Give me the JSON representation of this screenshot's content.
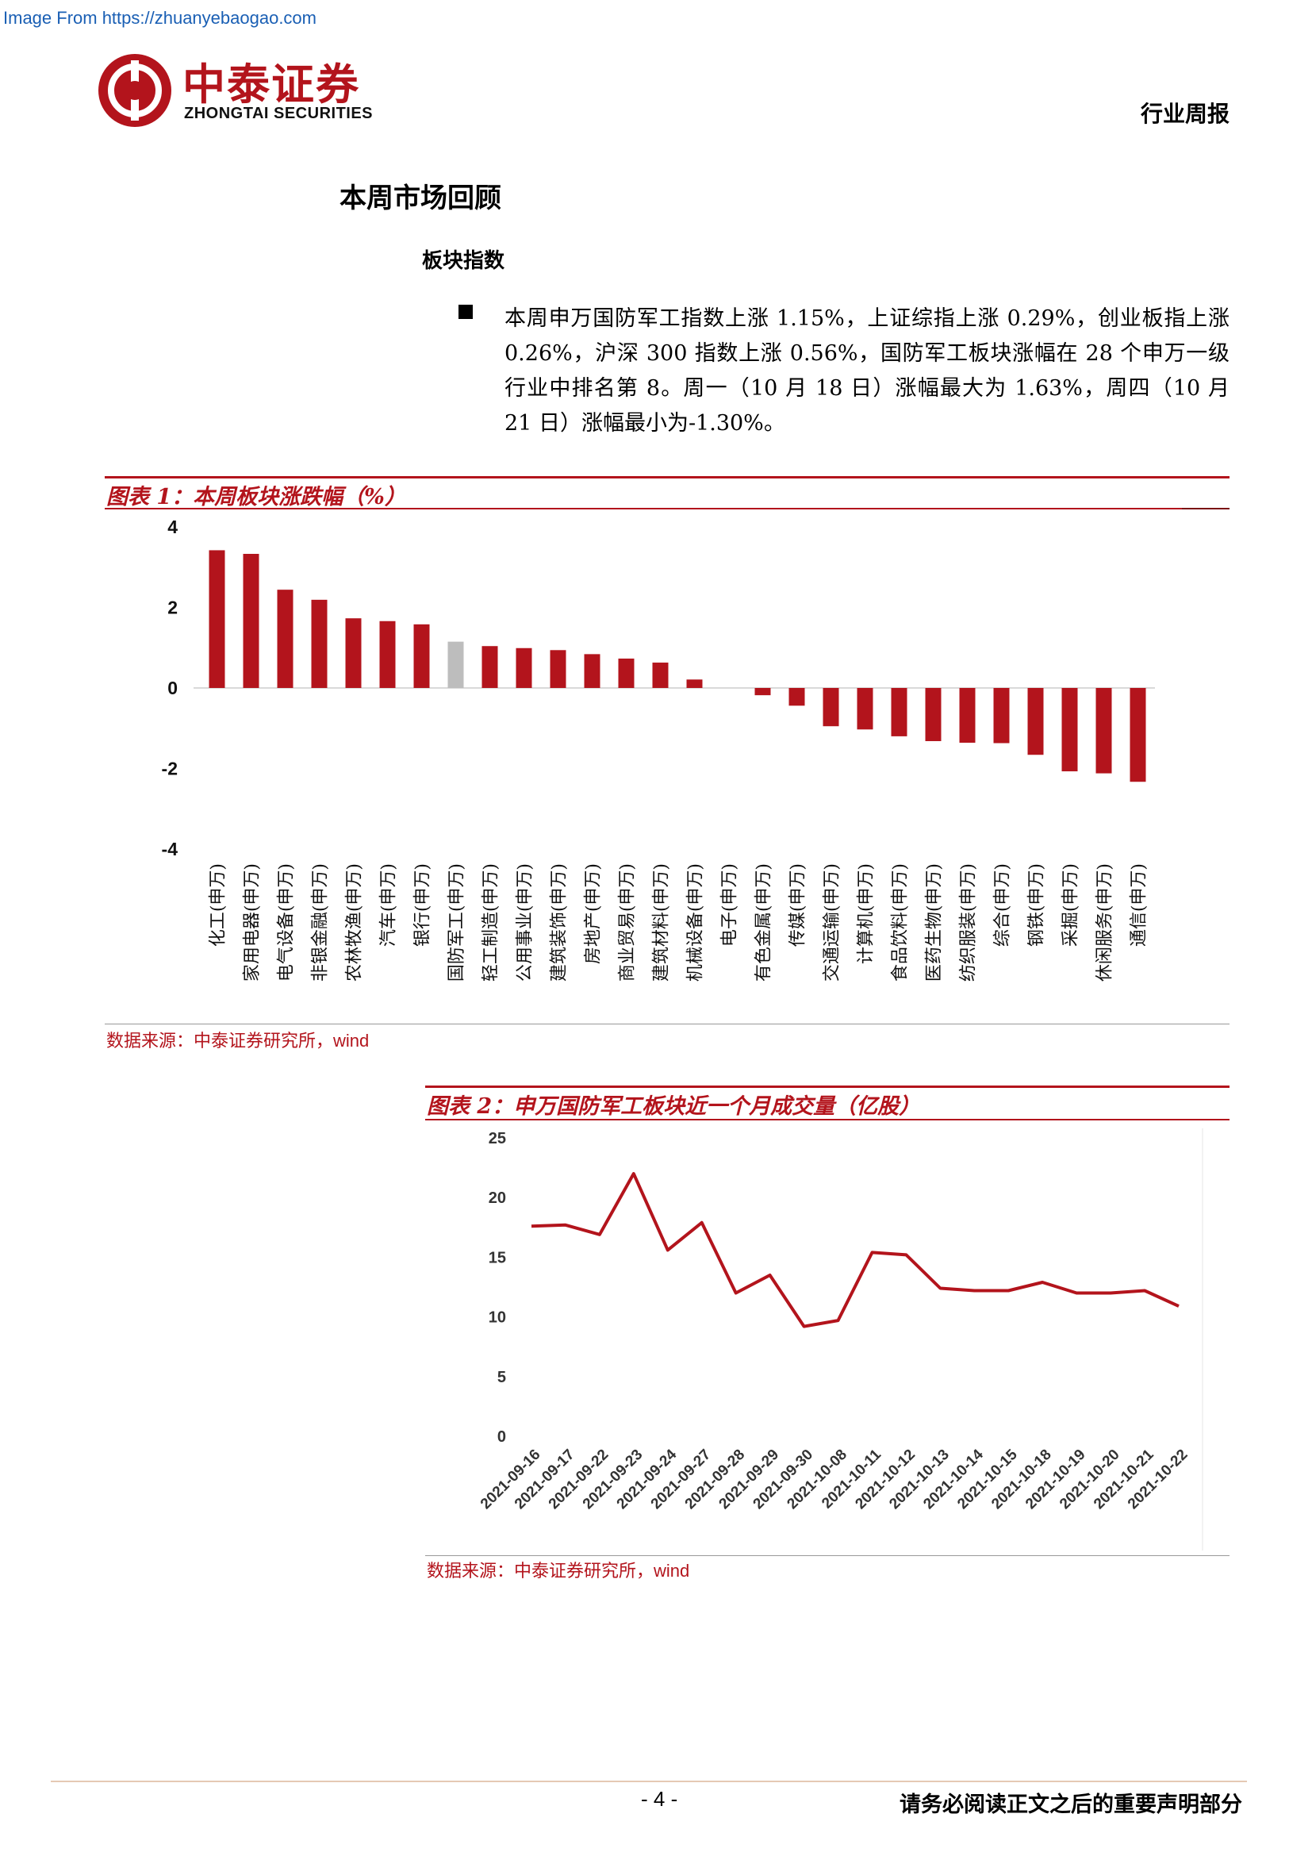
{
  "watermark": "Image From https://zhuanyebaogao.com",
  "header": {
    "logo_cn": "中泰证券",
    "logo_en": "ZHONGTAI SECURITIES",
    "report_type": "行业周报"
  },
  "section_title": "本周市场回顾",
  "subsection_title": "板块指数",
  "paragraph": "本周申万国防军工指数上涨 1.15%，上证综指上涨 0.29%，创业板指上涨 0.26%，沪深 300 指数上涨 0.56%，国防军工板块涨幅在 28 个申万一级行业中排名第 8。周一（10 月 18 日）涨幅最大为 1.63%，周四（10 月 21 日）涨幅最小为-1.30%。",
  "colors": {
    "accent": "#b3141c",
    "highlight_bar": "#bdbdbd"
  },
  "figure1": {
    "title": "图表 1：本周板块涨跌幅（%）",
    "source_cn": "数据来源：中泰证券研究所，",
    "source_en": "wind"
  },
  "figure2": {
    "title": "图表 2：申万国防军工板块近一个月成交量（亿股）",
    "source_cn": "数据来源：中泰证券研究所，",
    "source_en": "wind"
  },
  "chart_data": [
    {
      "type": "bar",
      "title": "本周板块涨跌幅（%）",
      "categories": [
        "化工(申万)",
        "家用电器(申万)",
        "电气设备(申万)",
        "非银金融(申万)",
        "农林牧渔(申万)",
        "汽车(申万)",
        "银行(申万)",
        "国防军工(申万)",
        "轻工制造(申万)",
        "公用事业(申万)",
        "建筑装饰(申万)",
        "房地产(申万)",
        "商业贸易(申万)",
        "建筑材料(申万)",
        "机械设备(申万)",
        "电子(申万)",
        "有色金属(申万)",
        "传媒(申万)",
        "交通运输(申万)",
        "计算机(申万)",
        "食品饮料(申万)",
        "医药生物(申万)",
        "纺织服装(申万)",
        "综合(申万)",
        "钢铁(申万)",
        "采掘(申万)",
        "休闲服务(申万)",
        "通信(申万)"
      ],
      "values": [
        3.42,
        3.33,
        2.44,
        2.19,
        1.73,
        1.66,
        1.58,
        1.15,
        1.04,
        0.99,
        0.94,
        0.84,
        0.73,
        0.63,
        0.21,
        0.0,
        -0.18,
        -0.44,
        -0.95,
        -1.03,
        -1.2,
        -1.32,
        -1.36,
        -1.37,
        -1.66,
        -2.07,
        -2.12,
        -2.33
      ],
      "highlight": "国防军工(申万)",
      "yticks": [
        4,
        2,
        0,
        -2,
        -4
      ],
      "ylim": [
        -4,
        4
      ],
      "grid": false
    },
    {
      "type": "line",
      "title": "申万国防军工板块近一个月成交量（亿股）",
      "x": [
        "2021-09-16",
        "2021-09-17",
        "2021-09-22",
        "2021-09-23",
        "2021-09-24",
        "2021-09-27",
        "2021-09-28",
        "2021-09-29",
        "2021-09-30",
        "2021-10-08",
        "2021-10-11",
        "2021-10-12",
        "2021-10-13",
        "2021-10-14",
        "2021-10-15",
        "2021-10-18",
        "2021-10-19",
        "2021-10-20",
        "2021-10-21",
        "2021-10-22"
      ],
      "values": [
        17.6,
        17.7,
        16.9,
        22.0,
        15.6,
        17.9,
        12.0,
        13.5,
        9.2,
        9.7,
        15.4,
        15.2,
        12.4,
        12.2,
        12.2,
        12.9,
        12.0,
        12.0,
        12.2,
        10.9
      ],
      "yticks": [
        25,
        20,
        15,
        10,
        5,
        0
      ],
      "ylim": [
        0,
        25
      ],
      "grid": false
    }
  ],
  "footer": {
    "page_number": "- 4 -",
    "disclaimer": "请务必阅读正文之后的重要声明部分"
  }
}
